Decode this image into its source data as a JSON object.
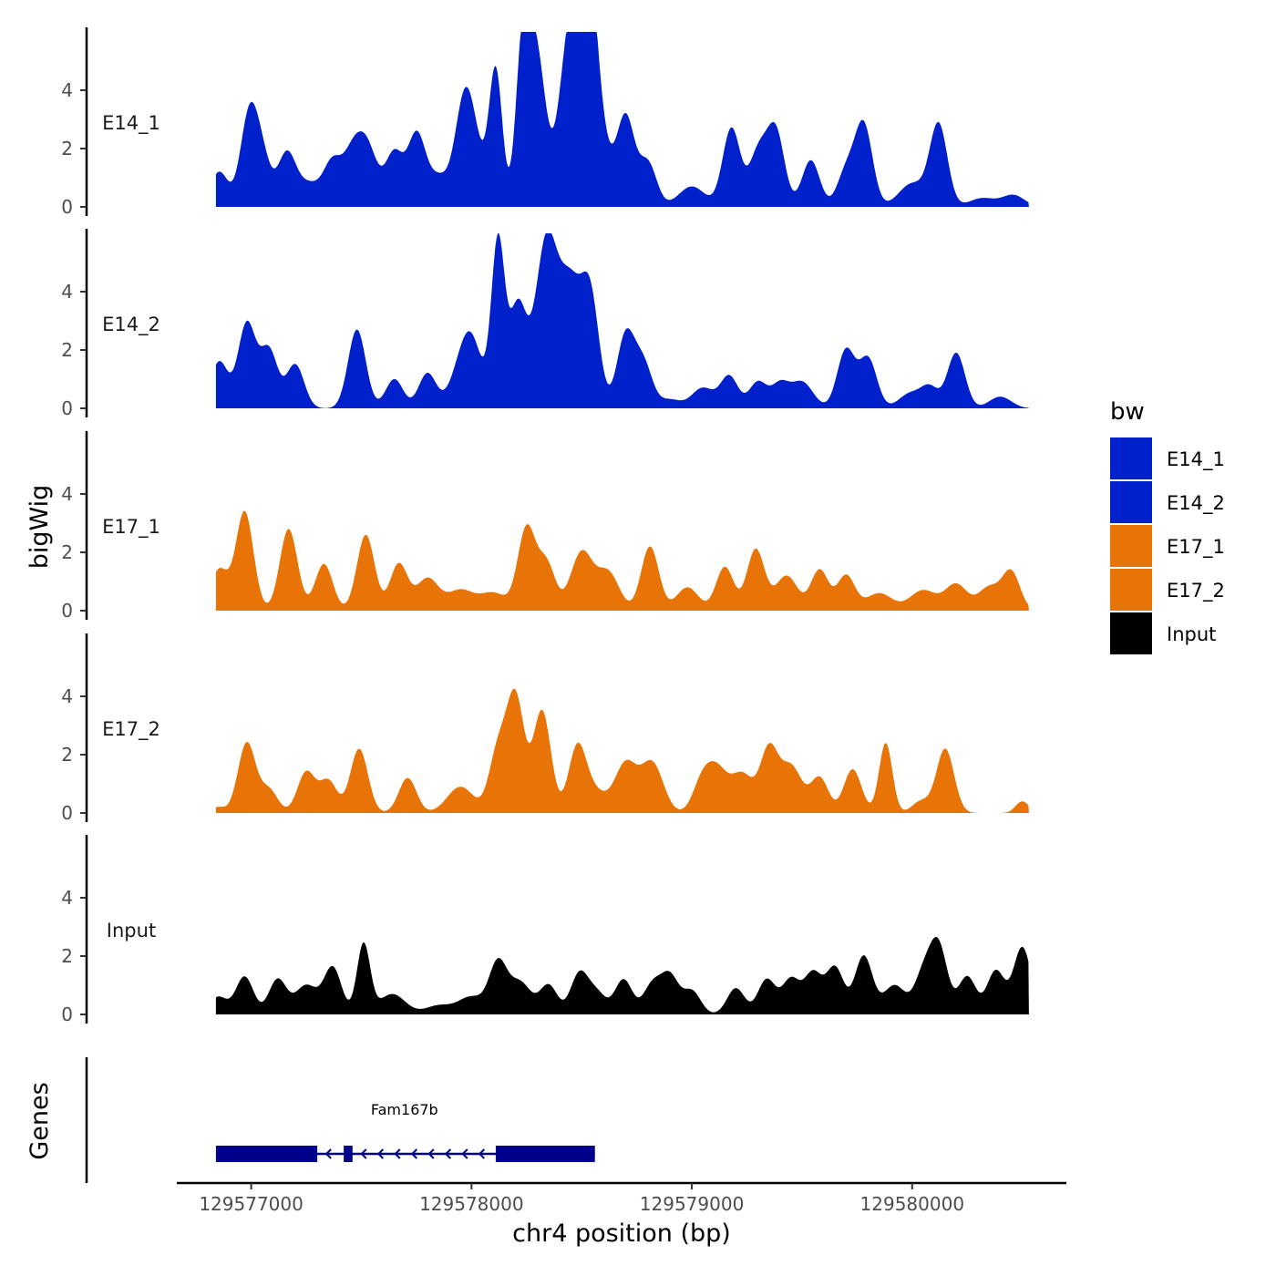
{
  "chart_data": {
    "type": "area",
    "xlabel": "chr4 position (bp)",
    "ylabel": "bigWig",
    "genes_label": "Genes",
    "legend_title": "bw",
    "legend_position": "right",
    "xlim": [
      129576650,
      129580700
    ],
    "x_ticks": [
      129577000,
      129578000,
      129579000,
      129580000
    ],
    "x_tick_labels": [
      "129577000",
      "129578000",
      "129579000",
      "129580000"
    ],
    "ylim": [
      0,
      6
    ],
    "y_ticks": [
      0,
      2,
      4
    ],
    "y_tick_labels": [
      "0",
      "2",
      "4"
    ],
    "colors": {
      "E14_1": "#0020CC",
      "E14_2": "#0020CC",
      "E17_1": "#E87307",
      "E17_2": "#E87307",
      "Input": "#000000",
      "gene": "#00008B"
    },
    "x_start": 129576840,
    "x_end": 129580530,
    "series": [
      {
        "name": "E14_1",
        "label": "E14_1",
        "peaks": [
          [
            129576840,
            0,
            25
          ],
          [
            129576855,
            1.2,
            40
          ],
          [
            129576990,
            3.0,
            40
          ],
          [
            129577050,
            1.5,
            40
          ],
          [
            129577160,
            1.7,
            40
          ],
          [
            129577260,
            0.8,
            60
          ],
          [
            129577370,
            1.4,
            40
          ],
          [
            129577450,
            1.2,
            40
          ],
          [
            129577520,
            2.2,
            50
          ],
          [
            129577650,
            1.8,
            40
          ],
          [
            129577750,
            2.4,
            40
          ],
          [
            129577850,
            1.0,
            50
          ],
          [
            129577960,
            2.0,
            40
          ],
          [
            129578000,
            2.5,
            50
          ],
          [
            129578110,
            4.6,
            30
          ],
          [
            129578230,
            4.3,
            30
          ],
          [
            129578290,
            5.5,
            45
          ],
          [
            129578440,
            5.2,
            45
          ],
          [
            129578520,
            5.6,
            40
          ],
          [
            129578550,
            3.5,
            60
          ],
          [
            129578700,
            3.0,
            40
          ],
          [
            129578800,
            1.5,
            40
          ],
          [
            129579000,
            0.7,
            60
          ],
          [
            129579180,
            2.7,
            40
          ],
          [
            129579300,
            1.8,
            40
          ],
          [
            129579380,
            2.6,
            40
          ],
          [
            129579540,
            1.6,
            40
          ],
          [
            129579700,
            1.2,
            40
          ],
          [
            129579780,
            2.8,
            40
          ],
          [
            129580000,
            0.8,
            60
          ],
          [
            129580120,
            2.8,
            40
          ],
          [
            129580320,
            0.3,
            60
          ],
          [
            129580460,
            0.4,
            50
          ]
        ]
      },
      {
        "name": "E14_2",
        "label": "E14_2",
        "peaks": [
          [
            129576840,
            0,
            25
          ],
          [
            129576855,
            1.6,
            40
          ],
          [
            129576980,
            2.9,
            40
          ],
          [
            129577080,
            2.0,
            40
          ],
          [
            129577200,
            1.5,
            40
          ],
          [
            129577480,
            2.7,
            40
          ],
          [
            129577650,
            1.0,
            40
          ],
          [
            129577800,
            1.2,
            40
          ],
          [
            129577940,
            0.8,
            50
          ],
          [
            129578000,
            2.2,
            50
          ],
          [
            129578120,
            5.6,
            30
          ],
          [
            129578210,
            3.5,
            40
          ],
          [
            129578340,
            5.7,
            50
          ],
          [
            129578450,
            4.0,
            50
          ],
          [
            129578540,
            3.6,
            40
          ],
          [
            129578700,
            2.5,
            40
          ],
          [
            129578780,
            1.5,
            40
          ],
          [
            129578900,
            0.3,
            50
          ],
          [
            129579050,
            0.7,
            50
          ],
          [
            129579170,
            1.1,
            40
          ],
          [
            129579300,
            0.9,
            40
          ],
          [
            129579400,
            0.8,
            40
          ],
          [
            129579500,
            0.9,
            50
          ],
          [
            129579700,
            2.0,
            40
          ],
          [
            129579800,
            1.7,
            40
          ],
          [
            129579990,
            0.5,
            50
          ],
          [
            129580080,
            0.7,
            40
          ],
          [
            129580200,
            1.9,
            40
          ],
          [
            129580400,
            0.4,
            50
          ]
        ]
      },
      {
        "name": "E17_1",
        "label": "E17_1",
        "peaks": [
          [
            129576840,
            0,
            25
          ],
          [
            129576855,
            1.4,
            40
          ],
          [
            129576970,
            3.4,
            40
          ],
          [
            129577170,
            2.8,
            40
          ],
          [
            129577330,
            1.6,
            40
          ],
          [
            129577520,
            2.6,
            40
          ],
          [
            129577670,
            1.6,
            40
          ],
          [
            129577800,
            1.1,
            50
          ],
          [
            129577950,
            0.7,
            60
          ],
          [
            129578100,
            0.6,
            60
          ],
          [
            129578250,
            2.8,
            40
          ],
          [
            129578340,
            1.6,
            40
          ],
          [
            129578500,
            2.0,
            50
          ],
          [
            129578620,
            1.3,
            50
          ],
          [
            129578810,
            2.2,
            40
          ],
          [
            129578980,
            0.8,
            50
          ],
          [
            129579150,
            1.5,
            40
          ],
          [
            129579290,
            2.1,
            40
          ],
          [
            129579430,
            1.2,
            50
          ],
          [
            129579580,
            1.4,
            40
          ],
          [
            129579700,
            1.2,
            40
          ],
          [
            129579850,
            0.6,
            60
          ],
          [
            129580050,
            0.7,
            60
          ],
          [
            129580200,
            0.9,
            50
          ],
          [
            129580350,
            0.8,
            50
          ],
          [
            129580450,
            1.3,
            40
          ]
        ]
      },
      {
        "name": "E17_2",
        "label": "E17_2",
        "peaks": [
          [
            129576850,
            0.2,
            30
          ],
          [
            129576980,
            2.4,
            40
          ],
          [
            129577080,
            0.8,
            40
          ],
          [
            129577250,
            1.4,
            40
          ],
          [
            129577350,
            1.1,
            40
          ],
          [
            129577490,
            2.2,
            40
          ],
          [
            129577710,
            1.2,
            40
          ],
          [
            129577950,
            0.9,
            60
          ],
          [
            129578120,
            2.1,
            40
          ],
          [
            129578200,
            3.9,
            40
          ],
          [
            129578320,
            3.5,
            40
          ],
          [
            129578480,
            2.2,
            40
          ],
          [
            129578560,
            0.7,
            50
          ],
          [
            129578700,
            1.7,
            50
          ],
          [
            129578820,
            1.7,
            50
          ],
          [
            129579040,
            0.8,
            40
          ],
          [
            129579110,
            1.5,
            50
          ],
          [
            129579230,
            1.3,
            50
          ],
          [
            129579350,
            2.1,
            40
          ],
          [
            129579450,
            1.6,
            50
          ],
          [
            129579580,
            1.2,
            40
          ],
          [
            129579730,
            1.5,
            40
          ],
          [
            129579880,
            2.4,
            30
          ],
          [
            129580040,
            0.4,
            40
          ],
          [
            129580150,
            2.2,
            40
          ],
          [
            129580500,
            0.4,
            30
          ]
        ]
      },
      {
        "name": "Input",
        "label": "Input",
        "peaks": [
          [
            129576850,
            0.6,
            40
          ],
          [
            129576970,
            1.3,
            40
          ],
          [
            129577120,
            1.2,
            40
          ],
          [
            129577250,
            1.0,
            50
          ],
          [
            129577370,
            1.6,
            40
          ],
          [
            129577510,
            2.4,
            30
          ],
          [
            129577640,
            0.7,
            60
          ],
          [
            129577850,
            0.3,
            60
          ],
          [
            129578000,
            0.6,
            60
          ],
          [
            129578120,
            1.7,
            40
          ],
          [
            129578220,
            1.1,
            50
          ],
          [
            129578350,
            1.0,
            40
          ],
          [
            129578490,
            1.4,
            40
          ],
          [
            129578570,
            0.7,
            40
          ],
          [
            129578690,
            1.2,
            40
          ],
          [
            129578820,
            1.0,
            40
          ],
          [
            129578900,
            1.3,
            40
          ],
          [
            129579000,
            0.8,
            40
          ],
          [
            129579200,
            0.9,
            40
          ],
          [
            129579340,
            1.2,
            40
          ],
          [
            129579450,
            1.2,
            40
          ],
          [
            129579550,
            1.4,
            40
          ],
          [
            129579650,
            1.6,
            40
          ],
          [
            129579780,
            2.0,
            40
          ],
          [
            129579920,
            1.0,
            50
          ],
          [
            129580050,
            1.3,
            40
          ],
          [
            129580120,
            2.3,
            40
          ],
          [
            129580250,
            1.3,
            40
          ],
          [
            129580380,
            1.5,
            40
          ],
          [
            129580500,
            2.3,
            40
          ]
        ]
      }
    ],
    "gene": {
      "name": "Fam167b",
      "strand": "-",
      "start": 129576840,
      "end": 129578560,
      "exons": [
        [
          129576840,
          129577300
        ],
        [
          129577420,
          129577460
        ],
        [
          129578110,
          129578560
        ]
      ]
    }
  }
}
